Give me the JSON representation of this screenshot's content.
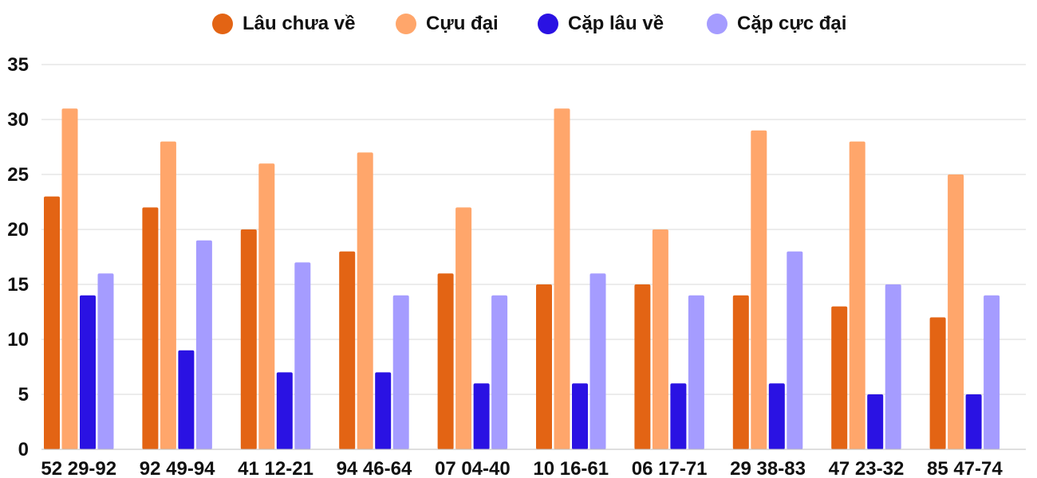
{
  "chart_data": {
    "type": "bar",
    "categories": [
      "52 29-92",
      "92 49-94",
      "41 12-21",
      "94 46-64",
      "07 04-40",
      "10 16-61",
      "06 17-71",
      "29 38-83",
      "47 23-32",
      "85 47-74"
    ],
    "series": [
      {
        "name": "Lâu chưa về",
        "color": "#e36414",
        "values": [
          23,
          22,
          20,
          18,
          16,
          15,
          15,
          14,
          13,
          12
        ]
      },
      {
        "name": "Cựu đại",
        "color": "#ffa66b",
        "values": [
          31,
          28,
          26,
          27,
          22,
          31,
          20,
          29,
          28,
          25
        ]
      },
      {
        "name": "Cặp lâu về",
        "color": "#2a12e3",
        "values": [
          14,
          9,
          7,
          7,
          6,
          6,
          6,
          6,
          5,
          5
        ]
      },
      {
        "name": "Cặp cực đại",
        "color": "#a59cff",
        "values": [
          16,
          19,
          17,
          14,
          14,
          16,
          14,
          18,
          15,
          14
        ]
      }
    ],
    "ylim": [
      0,
      35
    ],
    "yticks": [
      0,
      5,
      10,
      15,
      20,
      25,
      30,
      35
    ],
    "grid": true,
    "legend_position": "top-center",
    "title": "",
    "xlabel": "",
    "ylabel": ""
  }
}
